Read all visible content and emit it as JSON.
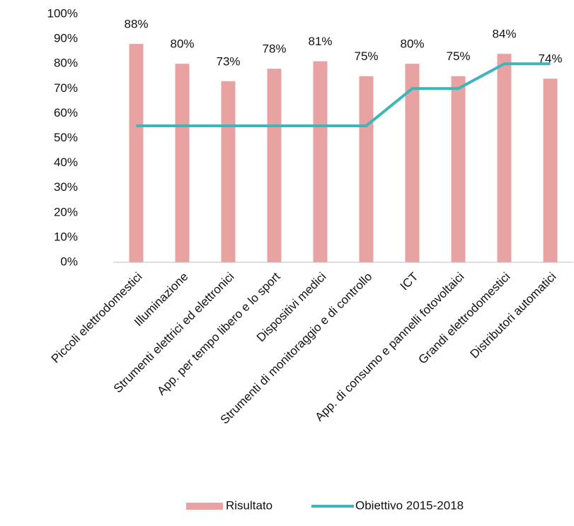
{
  "chart_data": {
    "type": "bar",
    "categories": [
      "Piccoli elettrodomestici",
      "Illuminazione",
      "Strumenti elettrici ed elettronici",
      "App. per tempo libero e lo sport",
      "Dispositivi medici",
      "Strumenti di monitoraggio e di controllo",
      "ICT",
      "App. di consumo e pannelli fotovoltaici",
      "Grandi elettrodomestici",
      "Distributori automatici"
    ],
    "series": [
      {
        "name": "Risultato",
        "type": "bar",
        "color": "#e8a2a2",
        "values": [
          88,
          80,
          73,
          78,
          81,
          75,
          80,
          75,
          84,
          74
        ],
        "value_labels": [
          "88%",
          "80%",
          "73%",
          "78%",
          "81%",
          "75%",
          "80%",
          "75%",
          "84%",
          "74%"
        ]
      },
      {
        "name": "Obiettivo 2015-2018",
        "type": "line",
        "color": "#3db5bb",
        "values": [
          55,
          55,
          55,
          55,
          55,
          55,
          70,
          70,
          80,
          80
        ]
      }
    ],
    "ylim": [
      0,
      100
    ],
    "yticks": [
      {
        "value": 0,
        "label": "0%"
      },
      {
        "value": 10,
        "label": "10%"
      },
      {
        "value": 20,
        "label": "20%"
      },
      {
        "value": 30,
        "label": "30%"
      },
      {
        "value": 40,
        "label": "40%"
      },
      {
        "value": 50,
        "label": "50%"
      },
      {
        "value": 60,
        "label": "60%"
      },
      {
        "value": 70,
        "label": "70%"
      },
      {
        "value": 80,
        "label": "80%"
      },
      {
        "value": 90,
        "label": "90%"
      },
      {
        "value": 100,
        "label": "100%"
      }
    ],
    "grid": false,
    "legend": "bottom"
  }
}
